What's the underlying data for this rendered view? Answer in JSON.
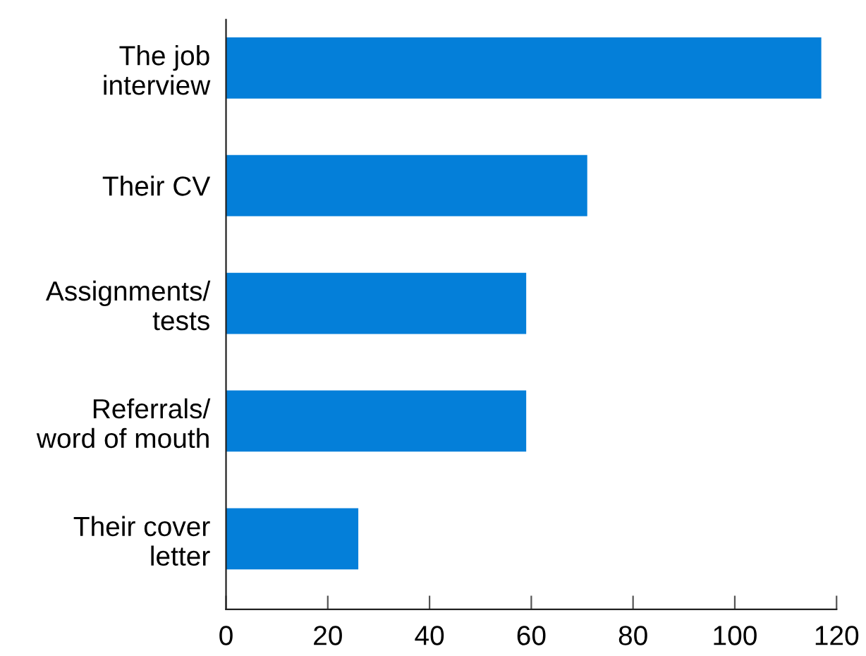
{
  "chart_data": {
    "type": "bar",
    "orientation": "horizontal",
    "categories": [
      "The job\ninterview",
      "Their CV",
      "Assignments/\ntests",
      "Referrals/\nword of mouth",
      "Their cover\nletter"
    ],
    "values": [
      117,
      71,
      59,
      59,
      26
    ],
    "color": "#047fd9",
    "xlim": [
      0,
      120
    ],
    "xticks": [
      0,
      20,
      40,
      60,
      80,
      100,
      120
    ],
    "grid": false,
    "legend": false
  }
}
